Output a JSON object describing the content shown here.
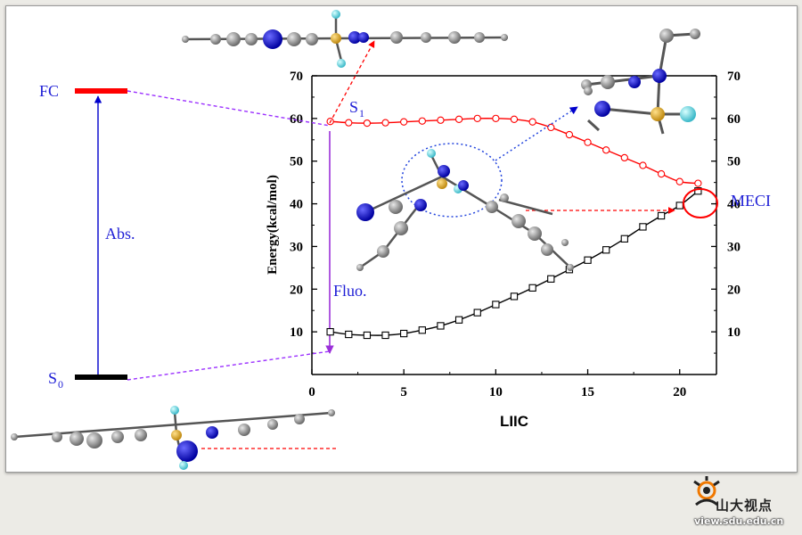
{
  "chart_data": {
    "type": "line",
    "x": [
      1,
      2,
      3,
      4,
      5,
      6,
      7,
      8,
      9,
      10,
      11,
      12,
      13,
      14,
      15,
      16,
      17,
      18,
      19,
      20,
      21
    ],
    "series": [
      {
        "name": "S1",
        "marker": "circle",
        "color": "#ff0000",
        "values": [
          59.3,
          59.0,
          58.9,
          59.0,
          59.2,
          59.4,
          59.6,
          59.8,
          60.0,
          60.0,
          59.8,
          59.2,
          57.9,
          56.2,
          54.4,
          52.6,
          50.8,
          49.0,
          47.0,
          45.2,
          44.8
        ]
      },
      {
        "name": "S0",
        "marker": "square",
        "color": "#000000",
        "values": [
          10.0,
          9.4,
          9.2,
          9.2,
          9.6,
          10.4,
          11.4,
          12.8,
          14.5,
          16.4,
          18.3,
          20.3,
          22.4,
          24.6,
          26.8,
          29.2,
          31.8,
          34.6,
          37.2,
          39.6,
          43.0
        ]
      }
    ],
    "xlabel": "LIIC",
    "ylabel": "Energy(kcal/mol)",
    "xlim": [
      0,
      22
    ],
    "ylim": [
      0,
      70
    ],
    "x_ticks": [
      "0",
      "5",
      "10",
      "15",
      "20"
    ],
    "y_ticks": [
      "10",
      "20",
      "30",
      "40",
      "50",
      "60",
      "70"
    ],
    "grid": false
  },
  "labels": {
    "fc": "FC",
    "s0_main": "S",
    "s0_sub": "0",
    "abs": "Abs.",
    "s1_main": "S",
    "s1_sub": "1",
    "fluo": "Fluo.",
    "meci": "MECI"
  },
  "colors": {
    "fc_bar": "#ff0000",
    "s0_bar": "#000000",
    "abs_arrow": "#0000cc",
    "fluo_arrow": "#9b30d9",
    "dashed_purple": "#9b30ff",
    "dashed_red": "#ff0000",
    "dotted_blue": "#2244dd",
    "label_blue": "#1f1fd6"
  },
  "watermark": {
    "name": "山大视点",
    "url": "view.sdu.edu.cn"
  }
}
